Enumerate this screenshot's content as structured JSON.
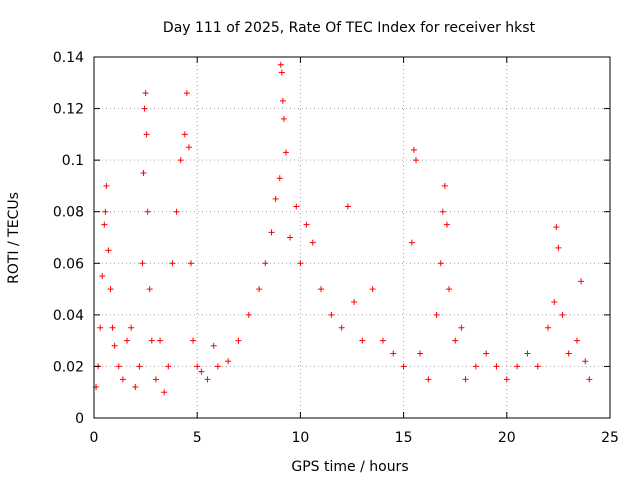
{
  "chart_data": {
    "type": "scatter",
    "title": "Day 111 of 2025, Rate Of TEC Index for receiver hkst",
    "xlabel": "GPS time / hours",
    "ylabel": "ROTI / TECUs",
    "xlim": [
      0,
      25
    ],
    "ylim": [
      0,
      0.14
    ],
    "xticks": [
      "0",
      "5",
      "10",
      "15",
      "20",
      "25"
    ],
    "yticks": [
      "0",
      "0.02",
      "0.04",
      "0.06",
      "0.08",
      "0.1",
      "0.12",
      "0.14"
    ],
    "grid": true,
    "marker": "plus",
    "color": "#ff0000",
    "series": [
      {
        "points": [
          [
            0.1,
            0.012
          ],
          [
            0.2,
            0.02
          ],
          [
            0.3,
            0.035
          ],
          [
            0.4,
            0.055
          ],
          [
            0.5,
            0.075
          ],
          [
            0.55,
            0.08
          ],
          [
            0.6,
            0.09
          ],
          [
            0.7,
            0.065
          ],
          [
            0.8,
            0.05
          ],
          [
            0.9,
            0.035
          ],
          [
            1.0,
            0.028
          ],
          [
            1.2,
            0.02
          ],
          [
            1.4,
            0.015
          ],
          [
            1.6,
            0.03
          ],
          [
            1.8,
            0.035
          ],
          [
            2.0,
            0.012
          ],
          [
            2.2,
            0.02
          ],
          [
            2.35,
            0.06
          ],
          [
            2.4,
            0.095
          ],
          [
            2.45,
            0.12
          ],
          [
            2.5,
            0.126
          ],
          [
            2.55,
            0.11
          ],
          [
            2.6,
            0.08
          ],
          [
            2.7,
            0.05
          ],
          [
            2.8,
            0.03
          ],
          [
            3.0,
            0.015
          ],
          [
            3.2,
            0.03
          ],
          [
            3.4,
            0.01
          ],
          [
            3.6,
            0.02
          ],
          [
            3.8,
            0.06
          ],
          [
            4.0,
            0.08
          ],
          [
            4.2,
            0.1
          ],
          [
            4.4,
            0.11
          ],
          [
            4.5,
            0.126
          ],
          [
            4.6,
            0.105
          ],
          [
            4.7,
            0.06
          ],
          [
            4.8,
            0.03
          ],
          [
            5.0,
            0.02
          ],
          [
            5.2,
            0.018
          ],
          [
            5.5,
            0.015
          ],
          [
            5.8,
            0.028
          ],
          [
            6.0,
            0.02
          ],
          [
            6.5,
            0.022
          ],
          [
            7.0,
            0.03
          ],
          [
            7.5,
            0.04
          ],
          [
            8.0,
            0.05
          ],
          [
            8.3,
            0.06
          ],
          [
            8.6,
            0.072
          ],
          [
            8.8,
            0.085
          ],
          [
            9.0,
            0.093
          ],
          [
            9.05,
            0.137
          ],
          [
            9.1,
            0.134
          ],
          [
            9.15,
            0.123
          ],
          [
            9.2,
            0.116
          ],
          [
            9.3,
            0.103
          ],
          [
            9.5,
            0.07
          ],
          [
            9.8,
            0.082
          ],
          [
            10.0,
            0.06
          ],
          [
            10.3,
            0.075
          ],
          [
            10.6,
            0.068
          ],
          [
            11.0,
            0.05
          ],
          [
            11.5,
            0.04
          ],
          [
            12.0,
            0.035
          ],
          [
            12.3,
            0.082
          ],
          [
            12.6,
            0.045
          ],
          [
            13.0,
            0.03
          ],
          [
            13.5,
            0.05
          ],
          [
            14.0,
            0.03
          ],
          [
            14.5,
            0.025
          ],
          [
            15.0,
            0.02
          ],
          [
            15.4,
            0.068
          ],
          [
            15.5,
            0.104
          ],
          [
            15.6,
            0.1
          ],
          [
            15.8,
            0.025
          ],
          [
            16.2,
            0.015
          ],
          [
            16.6,
            0.04
          ],
          [
            16.8,
            0.06
          ],
          [
            16.9,
            0.08
          ],
          [
            17.0,
            0.09
          ],
          [
            17.1,
            0.075
          ],
          [
            17.2,
            0.05
          ],
          [
            17.5,
            0.03
          ],
          [
            17.8,
            0.035
          ],
          [
            18.0,
            0.015
          ],
          [
            18.5,
            0.02
          ],
          [
            19.0,
            0.025
          ],
          [
            19.5,
            0.02
          ],
          [
            20.0,
            0.015
          ],
          [
            20.5,
            0.02
          ],
          [
            21.0,
            0.025
          ],
          [
            21.5,
            0.02
          ],
          [
            22.0,
            0.035
          ],
          [
            22.3,
            0.045
          ],
          [
            22.4,
            0.074
          ],
          [
            22.5,
            0.066
          ],
          [
            22.7,
            0.04
          ],
          [
            23.0,
            0.025
          ],
          [
            23.4,
            0.03
          ],
          [
            23.6,
            0.053
          ],
          [
            23.8,
            0.022
          ],
          [
            24.0,
            0.015
          ]
        ]
      }
    ]
  }
}
